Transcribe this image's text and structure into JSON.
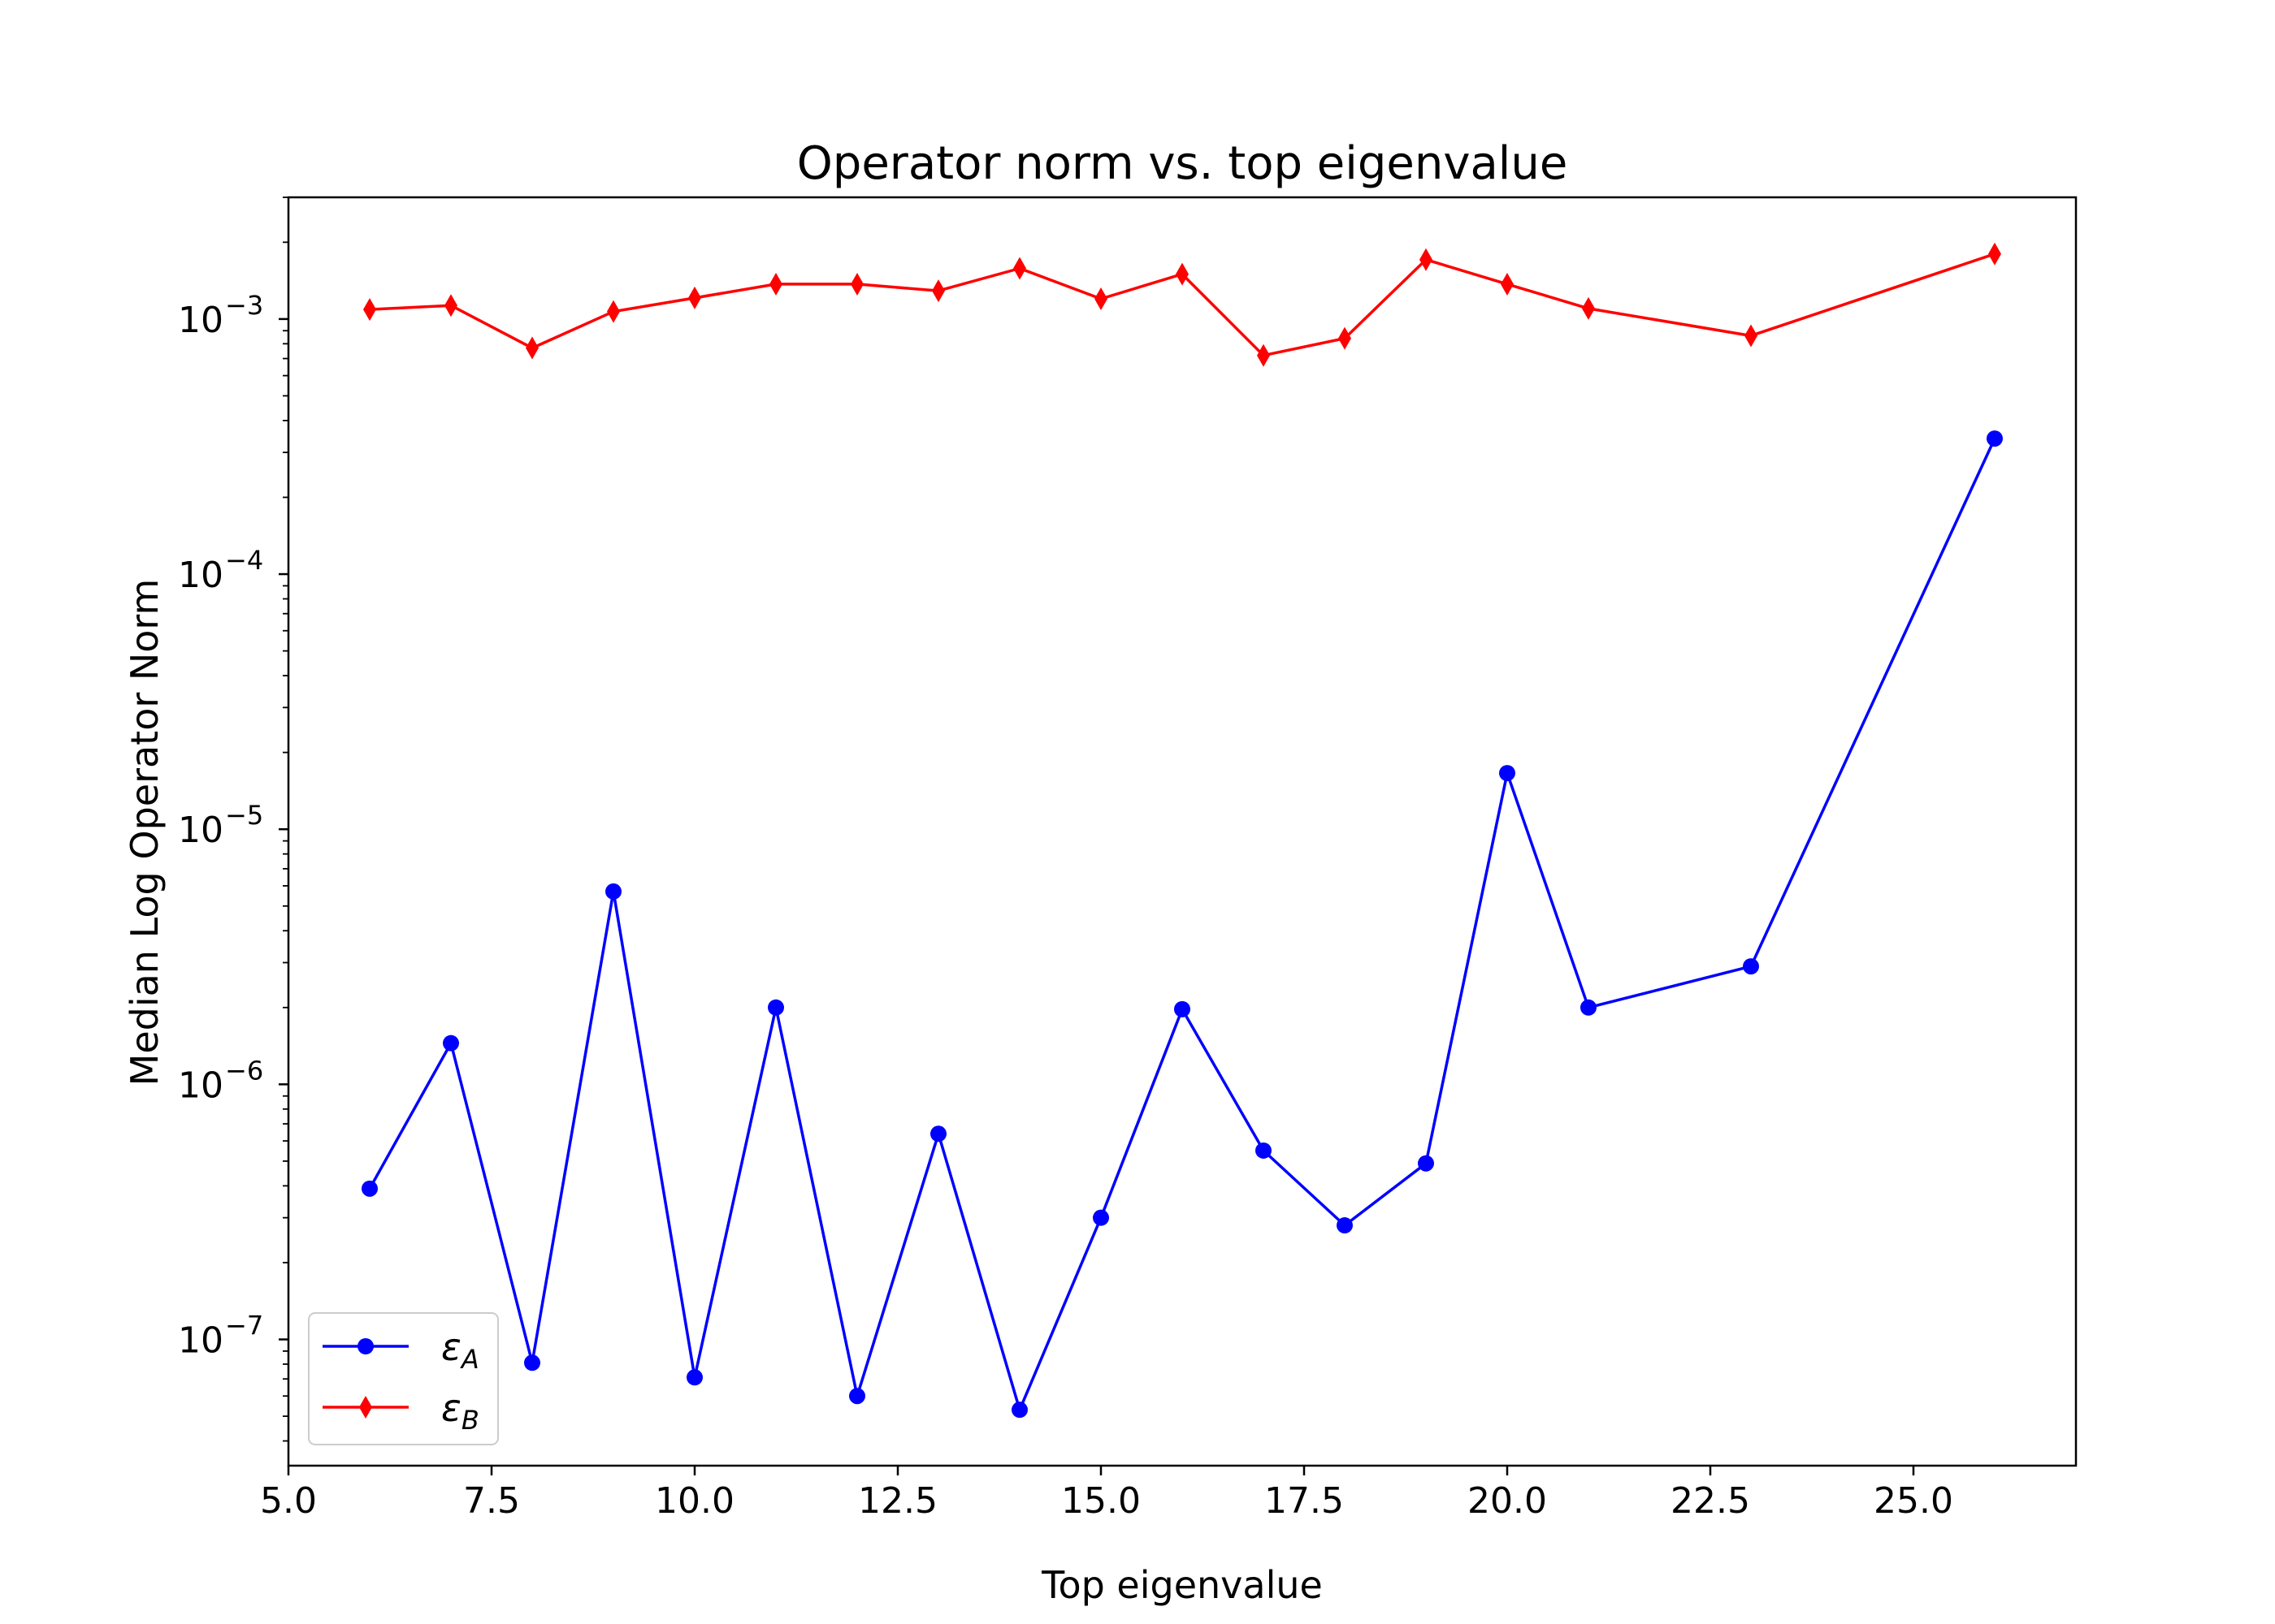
{
  "chart_data": {
    "type": "line",
    "title": "Operator norm vs. top eigenvalue",
    "xlabel": "Top eigenvalue",
    "ylabel": "Median Log Operator Norm",
    "xlim": [
      5.0,
      27.0
    ],
    "ylim": [
      3.2e-08,
      0.003
    ],
    "yscale": "log",
    "grid": false,
    "legend_position": "lower-left",
    "x_ticks": [
      "5.0",
      "7.5",
      "10.0",
      "12.5",
      "15.0",
      "17.5",
      "20.0",
      "22.5",
      "25.0"
    ],
    "y_ticks": [
      {
        "base": "10",
        "exp": "−7",
        "value": 1e-07
      },
      {
        "base": "10",
        "exp": "−6",
        "value": 1e-06
      },
      {
        "base": "10",
        "exp": "−5",
        "value": 1e-05
      },
      {
        "base": "10",
        "exp": "−4",
        "value": 0.0001
      },
      {
        "base": "10",
        "exp": "−3",
        "value": 0.001
      }
    ],
    "series": [
      {
        "name": "ε",
        "name_sub": "A",
        "color": "#0000ff",
        "marker": "circle",
        "x": [
          6,
          7,
          8,
          9,
          10,
          11,
          12,
          13,
          14,
          15,
          16,
          17,
          18,
          19,
          20,
          21,
          23,
          26
        ],
        "y": [
          3.9e-07,
          1.45e-06,
          8.1e-08,
          5.7e-06,
          7.1e-08,
          2e-06,
          6e-08,
          6.4e-07,
          5.3e-08,
          3e-07,
          1.97e-06,
          5.5e-07,
          2.8e-07,
          4.9e-07,
          1.66e-05,
          2e-06,
          2.9e-06,
          0.00034
        ]
      },
      {
        "name": "ε",
        "name_sub": "B",
        "color": "#ff0000",
        "marker": "diamond",
        "x": [
          6,
          7,
          8,
          9,
          10,
          11,
          12,
          13,
          14,
          15,
          16,
          17,
          18,
          19,
          20,
          21,
          23,
          26
        ],
        "y": [
          0.00109,
          0.00113,
          0.00077,
          0.00107,
          0.00121,
          0.00137,
          0.00137,
          0.00129,
          0.00158,
          0.0012,
          0.0015,
          0.00072,
          0.00084,
          0.00171,
          0.00137,
          0.0011,
          0.00086,
          0.0018
        ]
      }
    ]
  }
}
